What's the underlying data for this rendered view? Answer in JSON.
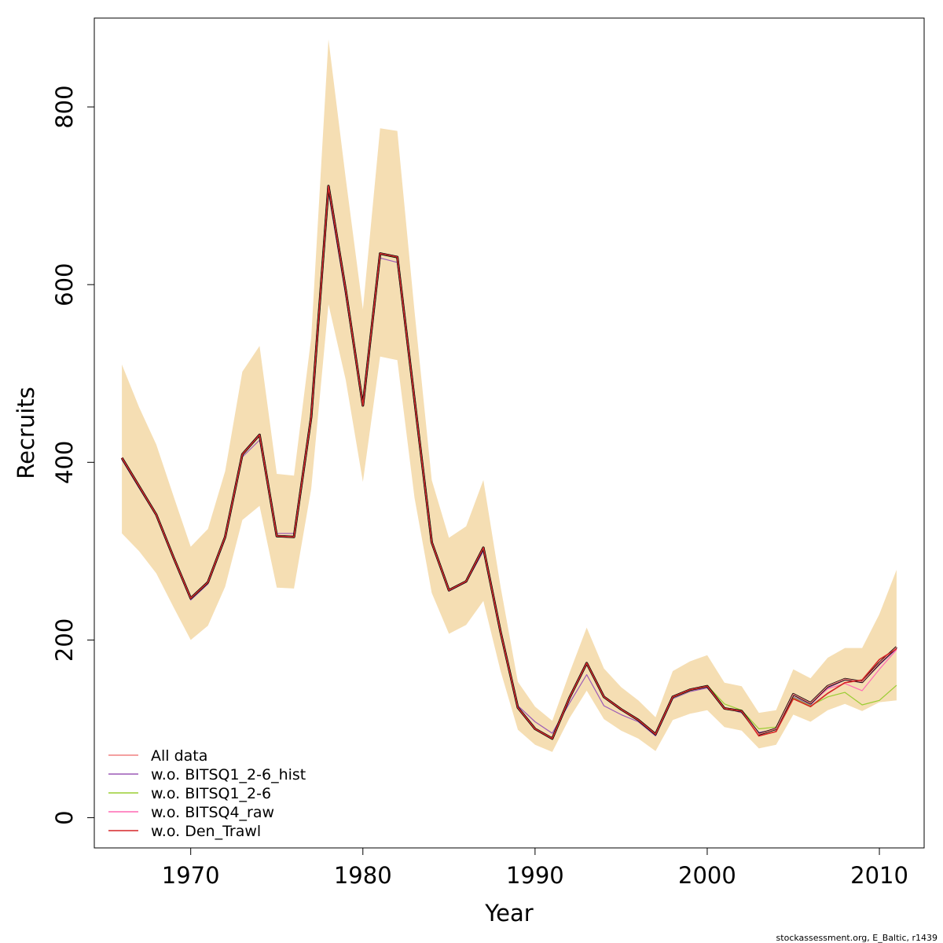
{
  "chart_data": {
    "type": "line",
    "title": "",
    "xlabel": "Year",
    "ylabel": "Recruits",
    "xlim": [
      1964.4,
      2012.6
    ],
    "ylim": [
      -34,
      900
    ],
    "x_ticks": [
      1970,
      1980,
      1990,
      2000,
      2010
    ],
    "y_ticks": [
      0,
      200,
      400,
      600,
      800
    ],
    "grid": false,
    "legend_position": "bottom-left",
    "band_color": "#f5deb3",
    "years": [
      1966,
      1967,
      1968,
      1969,
      1970,
      1971,
      1972,
      1973,
      1974,
      1975,
      1976,
      1977,
      1978,
      1979,
      1980,
      1981,
      1982,
      1983,
      1984,
      1985,
      1986,
      1987,
      1988,
      1989,
      1990,
      1991,
      1992,
      1993,
      1994,
      1995,
      1996,
      1997,
      1998,
      1999,
      2000,
      2001,
      2002,
      2003,
      2004,
      2005,
      2006,
      2007,
      2008,
      2009,
      2010,
      2011
    ],
    "band_upper": [
      510,
      462,
      420,
      362,
      305,
      325,
      390,
      502,
      531,
      387,
      385,
      540,
      876,
      720,
      572,
      776,
      773,
      570,
      380,
      315,
      328,
      380,
      260,
      153,
      125,
      109,
      163,
      214,
      168,
      147,
      132,
      113,
      165,
      176,
      183,
      152,
      148,
      118,
      121,
      167,
      157,
      180,
      191,
      191,
      229,
      279
    ],
    "band_lower": [
      320,
      300,
      275,
      237,
      200,
      216,
      260,
      335,
      351,
      259,
      258,
      370,
      578,
      493,
      378,
      519,
      515,
      360,
      253,
      207,
      217,
      244,
      165,
      99,
      82,
      74,
      112,
      143,
      111,
      98,
      89,
      75,
      110,
      117,
      121,
      102,
      98,
      78,
      82,
      116,
      108,
      121,
      128,
      120,
      130,
      132
    ],
    "main_color": "#000000",
    "main_values": [
      405,
      373,
      341,
      293,
      247,
      265,
      316,
      409,
      431,
      317,
      316,
      451,
      711,
      594,
      464,
      635,
      631,
      470,
      310,
      256,
      266,
      304,
      209,
      124,
      100,
      89,
      135,
      174,
      136,
      122,
      110,
      94,
      136,
      144,
      148,
      123,
      120,
      94,
      100,
      139,
      129,
      148,
      156,
      153,
      174,
      192
    ],
    "series": [
      {
        "name": "All data",
        "color": "#f08080",
        "values": [
          405,
          373,
          341,
          293,
          247,
          265,
          316,
          409,
          431,
          317,
          316,
          451,
          711,
          594,
          464,
          635,
          631,
          470,
          310,
          256,
          266,
          304,
          209,
          124,
          100,
          89,
          135,
          174,
          136,
          122,
          110,
          94,
          136,
          144,
          148,
          123,
          120,
          94,
          100,
          139,
          129,
          148,
          156,
          153,
          174,
          192
        ]
      },
      {
        "name": "w.o. BITSQ1_2-6_hist",
        "color": "#9b59b6",
        "values": [
          403,
          371,
          340,
          292,
          245,
          263,
          314,
          406,
          425,
          320,
          320,
          450,
          704,
          588,
          464,
          630,
          625,
          468,
          309,
          255,
          265,
          300,
          208,
          126,
          108,
          95,
          129,
          161,
          126,
          116,
          108,
          92,
          134,
          142,
          146,
          124,
          118,
          96,
          99,
          136,
          127,
          146,
          155,
          152,
          172,
          190
        ]
      },
      {
        "name": "w.o. BITSQ1_2-6",
        "color": "#9acd32",
        "values": [
          404,
          372,
          340,
          293,
          246,
          264,
          315,
          408,
          430,
          317,
          316,
          450,
          710,
          593,
          464,
          634,
          630,
          470,
          310,
          256,
          266,
          303,
          209,
          124,
          100,
          89,
          134,
          173,
          136,
          122,
          110,
          93,
          135,
          143,
          149,
          128,
          121,
          100,
          102,
          135,
          126,
          136,
          141,
          127,
          132,
          149
        ]
      },
      {
        "name": "w.o. BITSQ4_raw",
        "color": "#ff69b4",
        "values": [
          405,
          373,
          341,
          293,
          247,
          265,
          316,
          409,
          431,
          317,
          316,
          451,
          711,
          594,
          464,
          635,
          631,
          470,
          310,
          256,
          266,
          304,
          209,
          124,
          100,
          89,
          135,
          174,
          136,
          122,
          110,
          94,
          136,
          144,
          148,
          123,
          120,
          93,
          100,
          138,
          128,
          145,
          151,
          143,
          167,
          189
        ]
      },
      {
        "name": "w.o. Den_Trawl",
        "color": "#d62728",
        "values": [
          405,
          373,
          341,
          293,
          247,
          265,
          316,
          409,
          431,
          317,
          316,
          451,
          711,
          594,
          464,
          635,
          631,
          470,
          310,
          256,
          266,
          304,
          209,
          124,
          100,
          89,
          135,
          174,
          136,
          122,
          110,
          94,
          136,
          144,
          148,
          123,
          120,
          92,
          97,
          134,
          125,
          140,
          152,
          155,
          178,
          190
        ]
      }
    ]
  },
  "footer": {
    "credit": "stockassessment.org, E_Baltic, r1439"
  }
}
